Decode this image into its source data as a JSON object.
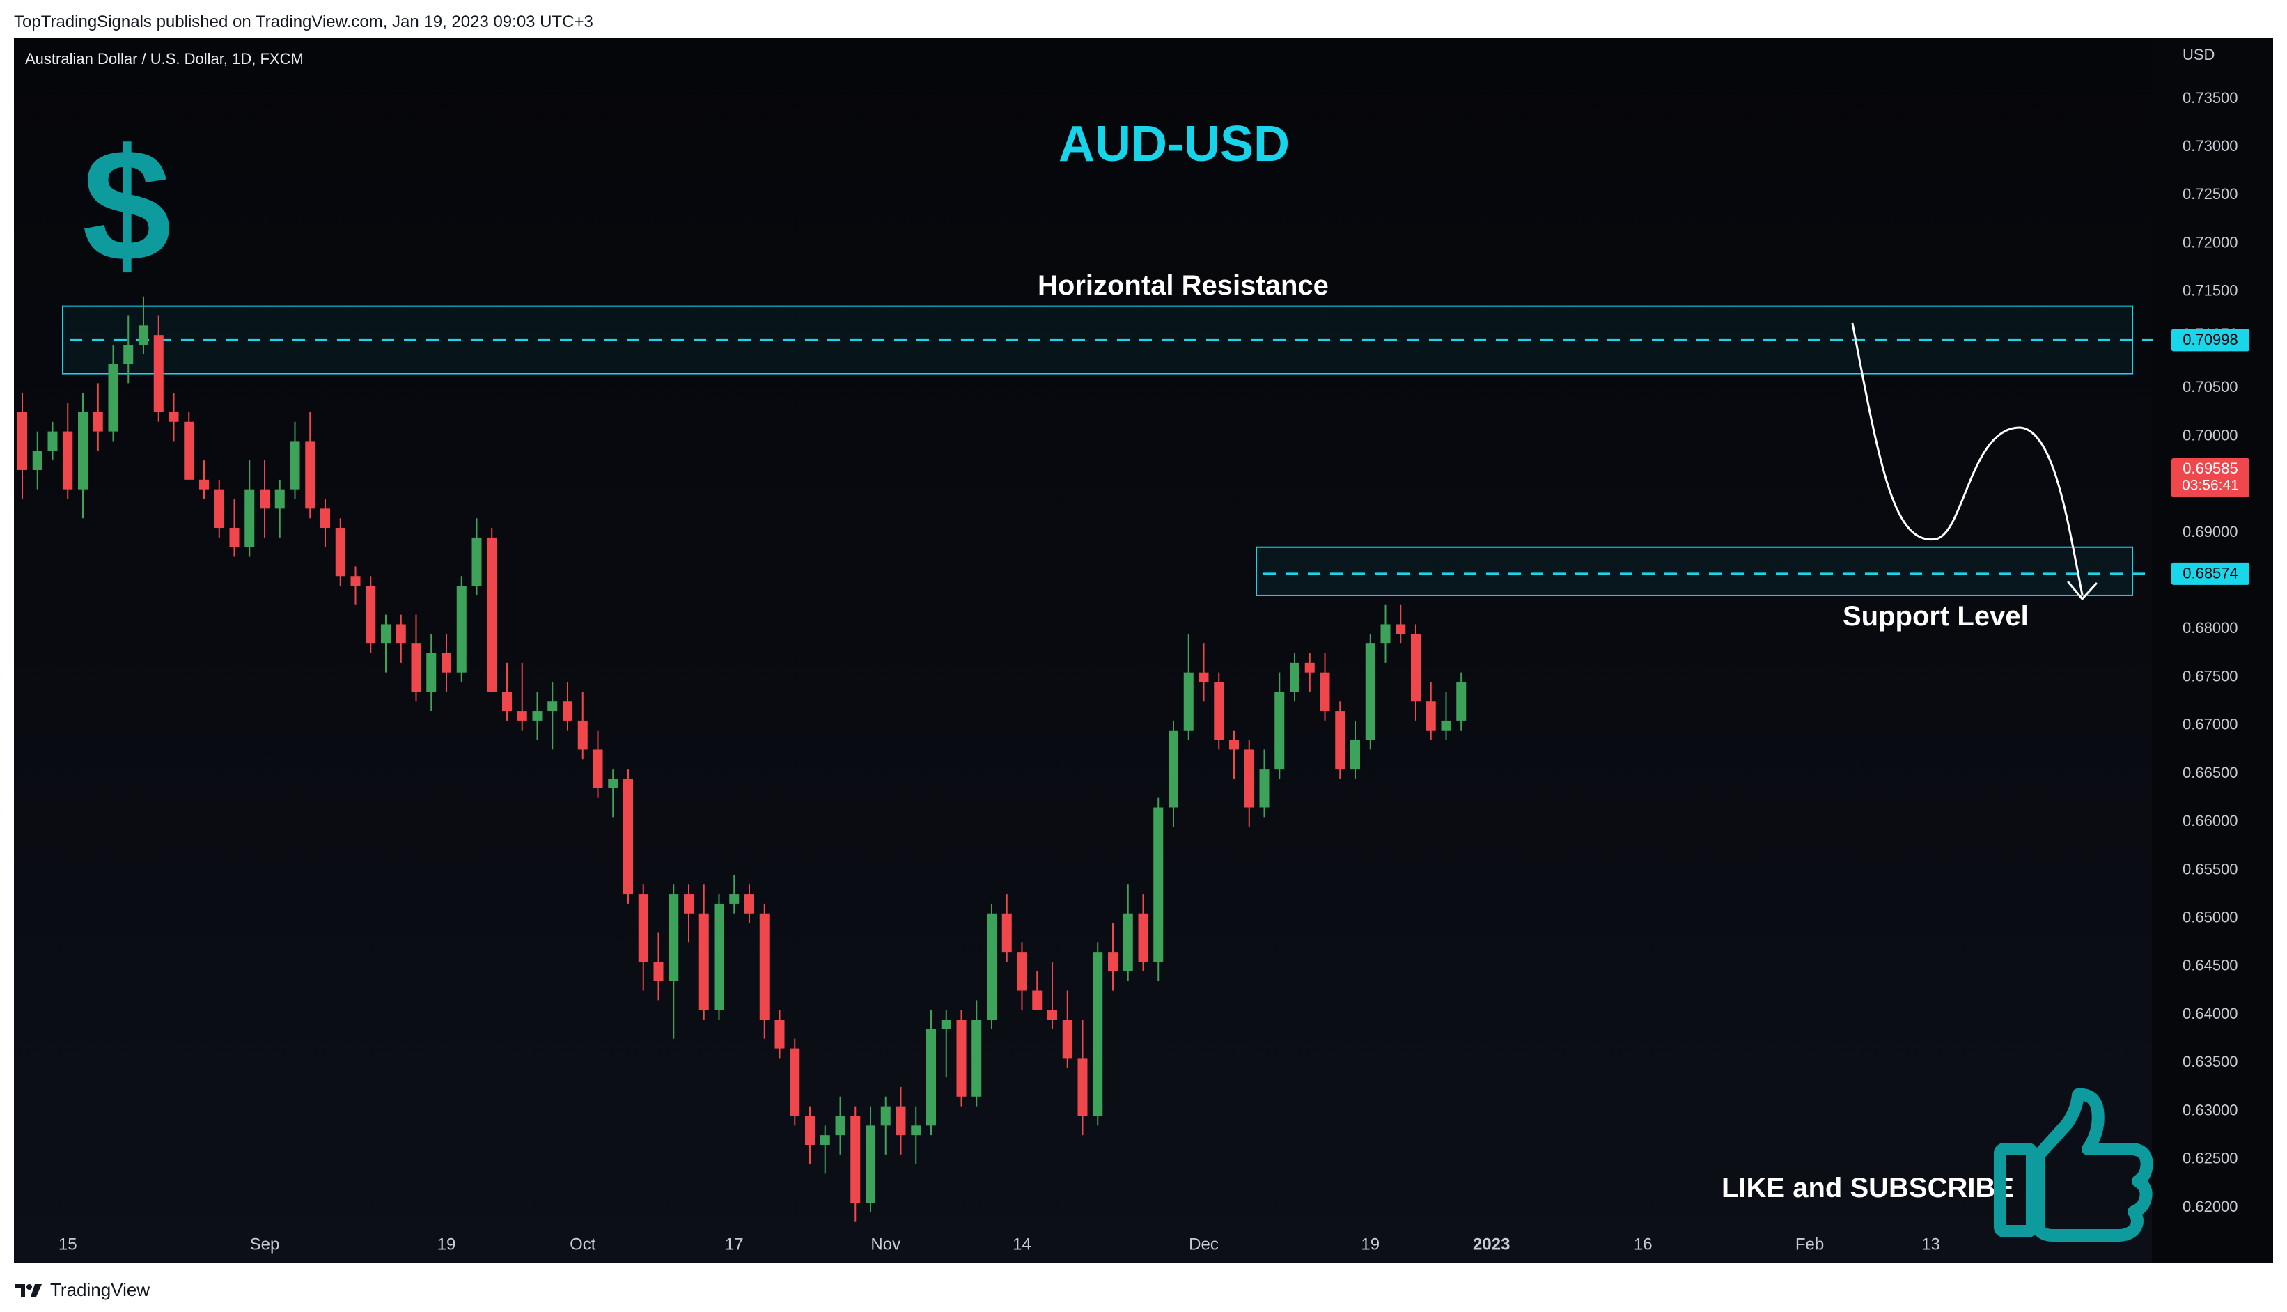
{
  "header": {
    "publisher_line": "TopTradingSignals published on TradingView.com, Jan 19, 2023 09:03 UTC+3"
  },
  "footer": {
    "brand": "TradingView"
  },
  "chart_data": {
    "type": "candlestick",
    "symbol": "Australian Dollar / U.S. Dollar, 1D, FXCM",
    "title": "AUD-USD",
    "currency_label": "USD",
    "y_ticks": [
      0.735,
      0.73,
      0.725,
      0.72,
      0.715,
      0.7105,
      0.705,
      0.7,
      0.69,
      0.68,
      0.675,
      0.67,
      0.665,
      0.66,
      0.655,
      0.65,
      0.645,
      0.64,
      0.635,
      0.63,
      0.625,
      0.62
    ],
    "y_tick_labels": [
      "0.73500",
      "0.73000",
      "0.72500",
      "0.72000",
      "0.71500",
      "0.71050",
      "0.70500",
      "0.70000",
      "0.69000",
      "0.68000",
      "0.67500",
      "0.67000",
      "0.66500",
      "0.66000",
      "0.65500",
      "0.65000",
      "0.64500",
      "0.64000",
      "0.63500",
      "0.63000",
      "0.62500",
      "0.62000"
    ],
    "x_labels": [
      {
        "label": "15",
        "bar": 3
      },
      {
        "label": "Sep",
        "bar": 16
      },
      {
        "label": "19",
        "bar": 28
      },
      {
        "label": "Oct",
        "bar": 37
      },
      {
        "label": "17",
        "bar": 47
      },
      {
        "label": "Nov",
        "bar": 57
      },
      {
        "label": "14",
        "bar": 66
      },
      {
        "label": "Dec",
        "bar": 78
      },
      {
        "label": "19",
        "bar": 89
      },
      {
        "label": "2023",
        "bar": 97
      },
      {
        "label": "16",
        "bar": 107
      },
      {
        "label": "Feb",
        "bar": 118
      },
      {
        "label": "13",
        "bar": 126
      }
    ],
    "bars": [
      [
        0.7025,
        0.7045,
        0.6935,
        0.6965
      ],
      [
        0.6965,
        0.7005,
        0.6945,
        0.6985
      ],
      [
        0.6985,
        0.7015,
        0.6975,
        0.7005
      ],
      [
        0.7005,
        0.7035,
        0.6935,
        0.6945
      ],
      [
        0.6945,
        0.7045,
        0.6915,
        0.7025
      ],
      [
        0.7025,
        0.7055,
        0.6985,
        0.7005
      ],
      [
        0.7005,
        0.7095,
        0.6995,
        0.7075
      ],
      [
        0.7075,
        0.7125,
        0.7055,
        0.7095
      ],
      [
        0.7095,
        0.7145,
        0.7085,
        0.7115
      ],
      [
        0.7105,
        0.7125,
        0.7015,
        0.7025
      ],
      [
        0.7025,
        0.7045,
        0.6995,
        0.7015
      ],
      [
        0.7015,
        0.7025,
        0.6955,
        0.6955
      ],
      [
        0.6955,
        0.6975,
        0.6935,
        0.6945
      ],
      [
        0.6945,
        0.6955,
        0.6895,
        0.6905
      ],
      [
        0.6905,
        0.6935,
        0.6875,
        0.6885
      ],
      [
        0.6885,
        0.6975,
        0.6875,
        0.6945
      ],
      [
        0.6945,
        0.6975,
        0.6895,
        0.6925
      ],
      [
        0.6925,
        0.6955,
        0.6895,
        0.6945
      ],
      [
        0.6945,
        0.7015,
        0.6935,
        0.6995
      ],
      [
        0.6995,
        0.7025,
        0.6915,
        0.6925
      ],
      [
        0.6925,
        0.6935,
        0.6885,
        0.6905
      ],
      [
        0.6905,
        0.6915,
        0.6845,
        0.6855
      ],
      [
        0.6855,
        0.6865,
        0.6825,
        0.6845
      ],
      [
        0.6845,
        0.6855,
        0.6775,
        0.6785
      ],
      [
        0.6785,
        0.6815,
        0.6755,
        0.6805
      ],
      [
        0.6805,
        0.6815,
        0.6765,
        0.6785
      ],
      [
        0.6785,
        0.6815,
        0.6725,
        0.6735
      ],
      [
        0.6735,
        0.6795,
        0.6715,
        0.6775
      ],
      [
        0.6775,
        0.6795,
        0.6735,
        0.6755
      ],
      [
        0.6755,
        0.6855,
        0.6745,
        0.6845
      ],
      [
        0.6845,
        0.6915,
        0.6835,
        0.6895
      ],
      [
        0.6895,
        0.6905,
        0.6735,
        0.6735
      ],
      [
        0.6735,
        0.6765,
        0.6705,
        0.6715
      ],
      [
        0.6715,
        0.6765,
        0.6695,
        0.6705
      ],
      [
        0.6705,
        0.6735,
        0.6685,
        0.6715
      ],
      [
        0.6715,
        0.6745,
        0.6675,
        0.6725
      ],
      [
        0.6725,
        0.6745,
        0.6695,
        0.6705
      ],
      [
        0.6705,
        0.6735,
        0.6665,
        0.6675
      ],
      [
        0.6675,
        0.6695,
        0.6625,
        0.6635
      ],
      [
        0.6635,
        0.6655,
        0.6605,
        0.6645
      ],
      [
        0.6645,
        0.6655,
        0.6515,
        0.6525
      ],
      [
        0.6525,
        0.6535,
        0.6425,
        0.6455
      ],
      [
        0.6455,
        0.6485,
        0.6415,
        0.6435
      ],
      [
        0.6435,
        0.6535,
        0.6375,
        0.6525
      ],
      [
        0.6525,
        0.6535,
        0.6475,
        0.6505
      ],
      [
        0.6505,
        0.6535,
        0.6395,
        0.6405
      ],
      [
        0.6405,
        0.6525,
        0.6395,
        0.6515
      ],
      [
        0.6515,
        0.6545,
        0.6505,
        0.6525
      ],
      [
        0.6525,
        0.6535,
        0.6495,
        0.6505
      ],
      [
        0.6505,
        0.6515,
        0.6375,
        0.6395
      ],
      [
        0.6395,
        0.6405,
        0.6355,
        0.6365
      ],
      [
        0.6365,
        0.6375,
        0.6285,
        0.6295
      ],
      [
        0.6295,
        0.6305,
        0.6245,
        0.6265
      ],
      [
        0.6265,
        0.6285,
        0.6235,
        0.6275
      ],
      [
        0.6275,
        0.6315,
        0.6255,
        0.6295
      ],
      [
        0.6295,
        0.6305,
        0.6185,
        0.6205
      ],
      [
        0.6205,
        0.6305,
        0.6195,
        0.6285
      ],
      [
        0.6285,
        0.6315,
        0.6255,
        0.6305
      ],
      [
        0.6305,
        0.6325,
        0.6255,
        0.6275
      ],
      [
        0.6275,
        0.6305,
        0.6245,
        0.6285
      ],
      [
        0.6285,
        0.6405,
        0.6275,
        0.6385
      ],
      [
        0.6385,
        0.6405,
        0.6335,
        0.6395
      ],
      [
        0.6395,
        0.6405,
        0.6305,
        0.6315
      ],
      [
        0.6315,
        0.6415,
        0.6305,
        0.6395
      ],
      [
        0.6395,
        0.6515,
        0.6385,
        0.6505
      ],
      [
        0.6505,
        0.6525,
        0.6455,
        0.6465
      ],
      [
        0.6465,
        0.6475,
        0.6405,
        0.6425
      ],
      [
        0.6425,
        0.6445,
        0.6405,
        0.6405
      ],
      [
        0.6405,
        0.6455,
        0.6385,
        0.6395
      ],
      [
        0.6395,
        0.6425,
        0.6345,
        0.6355
      ],
      [
        0.6355,
        0.6395,
        0.6275,
        0.6295
      ],
      [
        0.6295,
        0.6475,
        0.6285,
        0.6465
      ],
      [
        0.6465,
        0.6495,
        0.6425,
        0.6445
      ],
      [
        0.6445,
        0.6535,
        0.6435,
        0.6505
      ],
      [
        0.6505,
        0.6525,
        0.6445,
        0.6455
      ],
      [
        0.6455,
        0.6625,
        0.6435,
        0.6615
      ],
      [
        0.6615,
        0.6705,
        0.6595,
        0.6695
      ],
      [
        0.6695,
        0.6795,
        0.6685,
        0.6755
      ],
      [
        0.6755,
        0.6785,
        0.6725,
        0.6745
      ],
      [
        0.6745,
        0.6755,
        0.6675,
        0.6685
      ],
      [
        0.6685,
        0.6695,
        0.6645,
        0.6675
      ],
      [
        0.6675,
        0.6685,
        0.6595,
        0.6615
      ],
      [
        0.6615,
        0.6675,
        0.6605,
        0.6655
      ],
      [
        0.6655,
        0.6755,
        0.6645,
        0.6735
      ],
      [
        0.6735,
        0.6775,
        0.6725,
        0.6765
      ],
      [
        0.6765,
        0.6775,
        0.6735,
        0.6755
      ],
      [
        0.6755,
        0.6775,
        0.6705,
        0.6715
      ],
      [
        0.6715,
        0.6725,
        0.6645,
        0.6655
      ],
      [
        0.6655,
        0.6705,
        0.6645,
        0.6685
      ],
      [
        0.6685,
        0.6795,
        0.6675,
        0.6785
      ],
      [
        0.6785,
        0.6825,
        0.6765,
        0.6805
      ],
      [
        0.6805,
        0.6825,
        0.6785,
        0.6795
      ],
      [
        0.6795,
        0.6805,
        0.6705,
        0.6725
      ],
      [
        0.6725,
        0.6745,
        0.6685,
        0.6695
      ],
      [
        0.6695,
        0.6735,
        0.6685,
        0.6705
      ],
      [
        0.6705,
        0.6755,
        0.6695,
        0.6745
      ]
    ],
    "resistance_zone": {
      "label": "Horizontal Resistance",
      "y_top": 0.7135,
      "y_bottom": 0.7065,
      "level": 0.70998,
      "level_label": "0.70998"
    },
    "support_zone": {
      "label": "Support Level",
      "y_top": 0.6885,
      "y_bottom": 0.6835,
      "level": 0.68574,
      "level_label": "0.68574"
    },
    "current_price": {
      "label": "0.69585",
      "countdown": "03:56:41",
      "value": 0.69585
    },
    "annotations": {
      "like_subscribe": "LIKE and SUBSCRIBE"
    }
  },
  "colors": {
    "up": "#3ea35a",
    "down": "#f0474c",
    "zone": "#19d6ea",
    "title": "#17d4ea",
    "icon": "#0e9b9e",
    "axis_text": "#c8ccd4",
    "current_price_bg": "#f0474c"
  },
  "icons": {
    "dollar": "dollar-sign-icon",
    "thumb": "thumbs-up-icon",
    "logo": "tradingview-logo-icon"
  }
}
